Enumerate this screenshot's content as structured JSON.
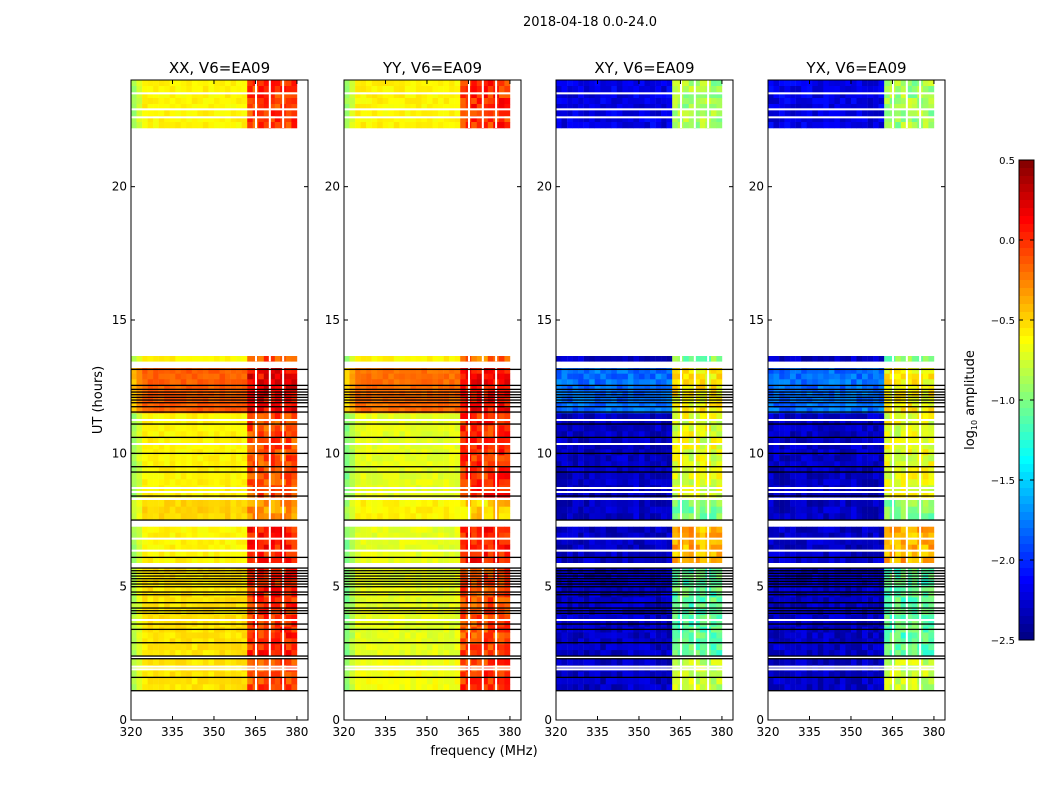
{
  "chart_data": {
    "type": "heatmap",
    "title": "2018-04-18 0.0-24.0",
    "xlabel": "frequency (MHz)",
    "ylabel": "UT (hours)",
    "xlim": [
      320,
      384
    ],
    "ylim": [
      0,
      24
    ],
    "xticks": [
      320,
      335,
      350,
      365,
      380
    ],
    "yticks": [
      0,
      5,
      10,
      15,
      20
    ],
    "colorbar": {
      "label": "log10 amplitude",
      "label_base": "log",
      "label_sub": "10",
      "label_rest": " amplitude",
      "range": [
        -2.5,
        0.5
      ],
      "ticks": [
        "0.5",
        "0.0",
        "−0.5",
        "−1.0",
        "−1.5",
        "−2.0",
        "−2.5"
      ],
      "tick_values": [
        0.5,
        0.0,
        -0.5,
        -1.0,
        -1.5,
        -2.0,
        -2.5
      ],
      "colormap": "jet"
    },
    "band_split_mhz": 360.5,
    "band_end_mhz": 380,
    "flagged_channels_mhz": [
      365.2,
      370.2,
      375.0
    ],
    "time_blocks_ut": [
      [
        22.2,
        24
      ],
      [
        13.45,
        13.65
      ],
      [
        11.5,
        13.2
      ],
      [
        8.35,
        11.5
      ],
      [
        7.5,
        8.25
      ],
      [
        5.9,
        7.25
      ],
      [
        2.4,
        5.7
      ],
      [
        1.1,
        2.3
      ]
    ],
    "black_lines_ut": [
      13.15,
      12.55,
      12.4,
      12.3,
      12.2,
      12.1,
      12.0,
      11.9,
      11.75,
      11.55,
      11.1,
      10.6,
      10.0,
      9.5,
      9.3,
      8.4,
      7.5,
      6.1,
      5.7,
      5.6,
      5.5,
      5.4,
      5.3,
      5.2,
      5.1,
      5.0,
      4.8,
      4.7,
      4.4,
      4.2,
      4.1,
      4.0,
      3.6,
      3.4,
      2.9,
      2.4,
      2.3,
      1.6,
      1.1
    ],
    "white_lines_ut": [
      22.6,
      22.9,
      23.5,
      11.25,
      10.35,
      8.7,
      8.55,
      6.8,
      6.35,
      3.75,
      1.9,
      2.0
    ],
    "panels": [
      {
        "title": "XX, V6=EA09",
        "low": [
          -0.6,
          -0.6,
          -0.15,
          -0.6,
          -0.5,
          -0.6,
          -0.55,
          -0.55
        ],
        "high": [
          -0.05,
          -0.1,
          0.15,
          -0.1,
          -0.3,
          0.05,
          0.0,
          -0.1
        ]
      },
      {
        "title": "YY, V6=EA09",
        "low": [
          -0.6,
          -0.6,
          -0.2,
          -0.7,
          -0.6,
          -0.7,
          -0.7,
          -0.65
        ],
        "high": [
          0.0,
          -0.2,
          0.1,
          0.0,
          -0.5,
          0.05,
          -0.1,
          -0.05
        ]
      },
      {
        "title": "XY, V6=EA09",
        "low": [
          -2.2,
          -2.3,
          -1.8,
          -2.3,
          -2.3,
          -2.3,
          -2.3,
          -2.3
        ],
        "high": [
          -0.9,
          -1.0,
          -0.6,
          -0.7,
          -1.0,
          -0.4,
          -1.1,
          -0.8
        ]
      },
      {
        "title": "YX, V6=EA09",
        "low": [
          -2.2,
          -2.3,
          -1.8,
          -2.3,
          -2.3,
          -2.3,
          -2.3,
          -2.3
        ],
        "high": [
          -0.9,
          -1.0,
          -0.6,
          -0.7,
          -1.0,
          -0.4,
          -1.1,
          -0.8
        ]
      }
    ]
  }
}
